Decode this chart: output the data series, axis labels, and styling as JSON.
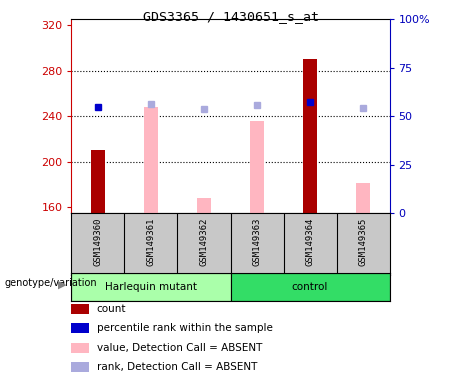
{
  "title": "GDS3365 / 1430651_s_at",
  "samples": [
    "GSM149360",
    "GSM149361",
    "GSM149362",
    "GSM149363",
    "GSM149364",
    "GSM149365"
  ],
  "ylim_left": [
    155,
    325
  ],
  "ylim_right": [
    0,
    100
  ],
  "yticks_left": [
    160,
    200,
    240,
    280,
    320
  ],
  "yticks_right": [
    0,
    25,
    50,
    75,
    100
  ],
  "bar_base": 155,
  "count_values": [
    210,
    null,
    null,
    null,
    290,
    null
  ],
  "count_color": "#AA0000",
  "pct_rank_values": [
    248,
    null,
    null,
    null,
    252,
    null
  ],
  "pct_rank_color": "#0000CC",
  "absent_value_values": [
    null,
    248,
    168,
    236,
    null,
    181
  ],
  "absent_value_color": "#FFB6C1",
  "absent_rank_values": [
    null,
    251,
    246,
    250,
    null,
    247
  ],
  "absent_rank_color": "#AAAADD",
  "harlequin_color": "#AAFFAA",
  "control_color": "#33DD66",
  "legend_items": [
    {
      "label": "count",
      "color": "#AA0000"
    },
    {
      "label": "percentile rank within the sample",
      "color": "#0000CC"
    },
    {
      "label": "value, Detection Call = ABSENT",
      "color": "#FFB6C1"
    },
    {
      "label": "rank, Detection Call = ABSENT",
      "color": "#AAAADD"
    }
  ],
  "bg_plot": "#ffffff",
  "bg_sample_row": "#C8C8C8",
  "left_axis_color": "#CC0000",
  "right_axis_color": "#0000BB",
  "bar_width": 0.25
}
